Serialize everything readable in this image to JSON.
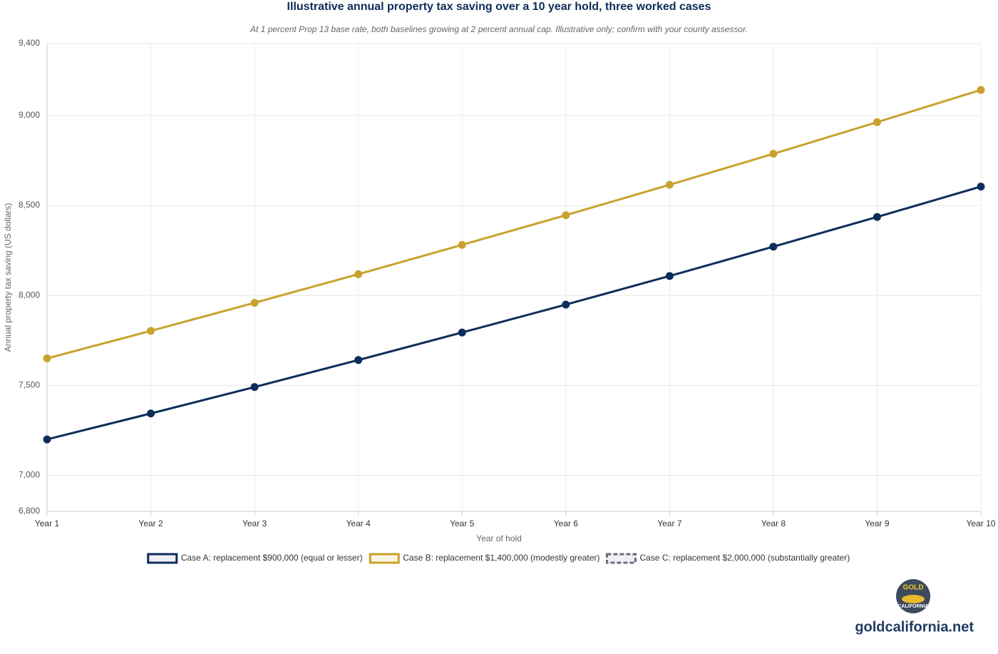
{
  "chart_data": {
    "type": "line",
    "title": "Illustrative annual property tax saving over a 10 year hold, three worked cases",
    "subtitle": "At 1 percent Prop 13 base rate, both baselines growing at 2 percent annual cap. Illustrative only; confirm with your county assessor.",
    "x_label": "Year of hold",
    "y_label": "Annual property tax saving (US dollars)",
    "categories": [
      "Year 1",
      "Year 2",
      "Year 3",
      "Year 4",
      "Year 5",
      "Year 6",
      "Year 7",
      "Year 8",
      "Year 9",
      "Year 10"
    ],
    "series": [
      {
        "name": "Case A: replacement $900,000 (equal or lesser)",
        "color": "#0d2d5a",
        "values": [
          7200,
          7344,
          7491,
          7641,
          7794,
          7949,
          8108,
          8271,
          8436,
          8605
        ]
      },
      {
        "name": "Case B: replacement $1,400,000 (modestly greater)",
        "color": "#c9a22d",
        "values": [
          7650,
          7803,
          7959,
          8118,
          8281,
          8446,
          8615,
          8787,
          8963,
          9142
        ]
      },
      {
        "name": "Case C: replacement $2,000,000 (substantially greater)",
        "color": "#6b6b80",
        "dashed": true,
        "values": [
          null,
          null,
          null,
          null,
          null,
          null,
          null,
          null,
          null,
          null
        ]
      }
    ],
    "ylim": [
      6800,
      9400
    ],
    "yticks": [
      {
        "value": 6800,
        "label": "6,800"
      },
      {
        "value": 7000,
        "label": "7,000"
      },
      {
        "value": 7500,
        "label": "7,500"
      },
      {
        "value": 8000,
        "label": "8,000"
      },
      {
        "value": 8500,
        "label": "8,500"
      },
      {
        "value": 9000,
        "label": "9,000"
      },
      {
        "value": 9400,
        "label": "9,400"
      }
    ],
    "grid": true,
    "legend": "bottom"
  },
  "logo": {
    "top": "GOLD",
    "bottom": "CALIFORNIA"
  },
  "site": "goldcalifornia.net"
}
